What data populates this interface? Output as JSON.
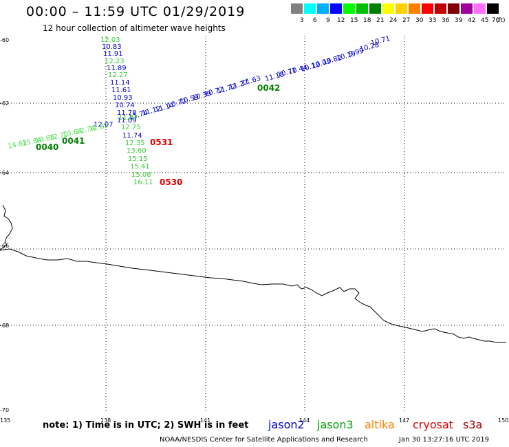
{
  "title": "00:00 – 11:59 UTC 01/29/2019",
  "subtitle": "12 hour collection of altimeter wave heights",
  "legend": {
    "colors": [
      "#808080",
      "#00ffff",
      "#00b0ff",
      "#0000ff",
      "#00ff00",
      "#00c000",
      "#008000",
      "#ffff00",
      "#ffd000",
      "#ff8000",
      "#ff0000",
      "#c00000",
      "#800000",
      "#a000a0",
      "#ff70ff",
      "#000000"
    ],
    "labels": [
      "3",
      "6",
      "9",
      "12",
      "15",
      "18",
      "21",
      "24",
      "27",
      "30",
      "33",
      "36",
      "39",
      "42",
      "45",
      "70"
    ],
    "unit": "(ft)"
  },
  "axes": {
    "lon_ticks": [
      "135",
      "138",
      "141",
      "144",
      "147",
      "150"
    ],
    "lat_ticks": [
      "-60",
      "-62",
      "-64",
      "-66",
      "-68",
      "-70"
    ]
  },
  "map": {
    "jason2_diagonal": [
      "10.71",
      "10.28",
      "9.99",
      "10.19",
      "10.82",
      "10.03",
      "10.12",
      "10.44",
      "10.71",
      "11.18",
      "11.63",
      "11.27",
      "11.72",
      "10.72",
      "10.39",
      "10.59",
      "10.72",
      "11.14",
      "11.12",
      "11.74"
    ],
    "jason2_vertical": [
      "10.83",
      "11.91",
      "11.89",
      "11.14",
      "11.61",
      "10.93",
      "10.74",
      "11.78",
      "11.09",
      "12.07",
      "11.74"
    ],
    "jason3_vertical": [
      "12.03",
      "12.23",
      "12.27",
      "11.87",
      "12.75",
      "12.35",
      "13.60",
      "15.15",
      "15.41",
      "15.08",
      "16.11"
    ],
    "jason3_diagonal": [
      "12.65",
      "12.74",
      "13.64",
      "12.70",
      "13.84",
      "15.84",
      "14.62"
    ],
    "time_labels": {
      "t0042": "0042",
      "t0041": "0041",
      "t0040": "0040",
      "t0531": "0531",
      "t0530": "0530"
    }
  },
  "footer": {
    "note": "note: 1) Time is in UTC; 2) SWH is in feet",
    "satellites": [
      {
        "name": "jason2",
        "color": "#0000cc"
      },
      {
        "name": "jason3",
        "color": "#00a000"
      },
      {
        "name": "altika",
        "color": "#ff8000"
      },
      {
        "name": "cryosat",
        "color": "#dd0000"
      },
      {
        "name": "s3a",
        "color": "#990000"
      }
    ],
    "credit": "NOAA/NESDIS Center for Satellite Applications and Research",
    "timestamp": "Jan 30 13:27:16 UTC 2019"
  }
}
